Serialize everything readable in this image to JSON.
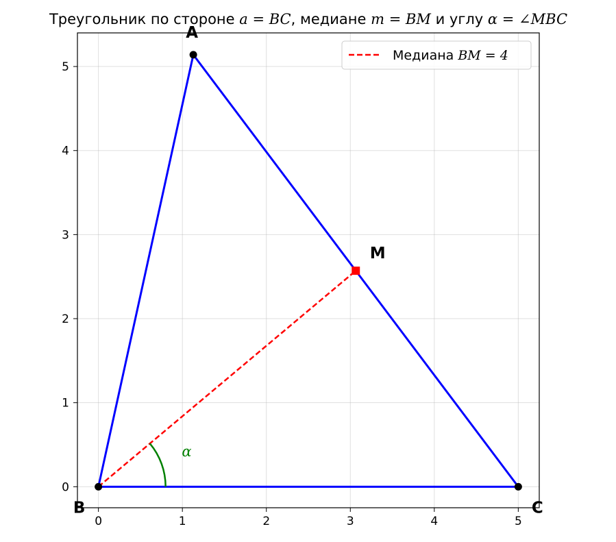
{
  "chart_data": {
    "type": "line",
    "title": {
      "prefix": "Треугольник по стороне ",
      "m1": "a = BC",
      "mid1": ", медиане ",
      "m2": "m = BM",
      "mid2": " и углу ",
      "m3": "α = ∠MBC"
    },
    "xlim": [
      -0.25,
      5.25
    ],
    "ylim": [
      -0.25,
      5.4
    ],
    "x_ticks": [
      0,
      1,
      2,
      3,
      4,
      5
    ],
    "y_ticks": [
      0,
      1,
      2,
      3,
      4,
      5
    ],
    "grid": true,
    "legend": {
      "placement": "top-right",
      "entry_prefix": "Медиана ",
      "entry_math": "BM = 4"
    },
    "points": [
      {
        "label": "A",
        "x": 1.13,
        "y": 5.14
      },
      {
        "label": "B",
        "x": 0,
        "y": 0
      },
      {
        "label": "C",
        "x": 5,
        "y": 0
      },
      {
        "label": "M",
        "x": 3.065,
        "y": 2.57
      }
    ],
    "triangle_color": "#0000ff",
    "median_color": "#ff0000",
    "angle_color": "#008000",
    "angle_label": "α",
    "marker_color": "#000000"
  }
}
